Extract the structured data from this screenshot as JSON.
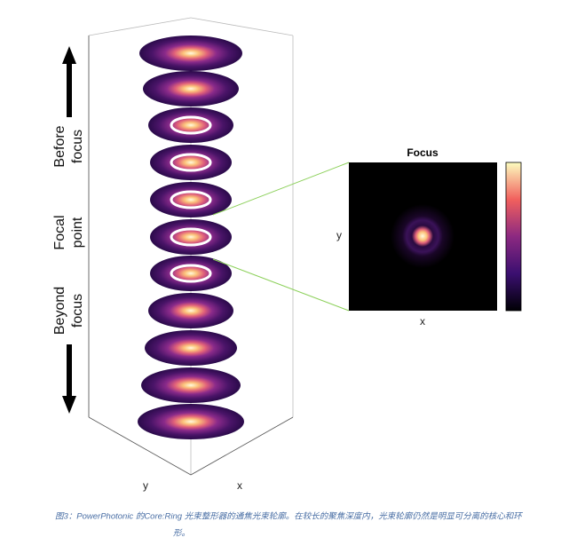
{
  "labels": {
    "before": [
      "Before",
      "focus"
    ],
    "focal": [
      "Focal",
      "point"
    ],
    "beyond": [
      "Beyond",
      "focus"
    ]
  },
  "stack_axes": {
    "y": "y",
    "x": "x"
  },
  "inset": {
    "title": "Focus",
    "y_label": "y",
    "x_label": "x"
  },
  "caption": [
    "图3：PowerPhotonic 的Core:Ring 光束整形器的通焦光束轮廓。在较长的聚焦深度内，光束轮廓仍然是明显可分离的核心和环",
    "形。"
  ]
}
